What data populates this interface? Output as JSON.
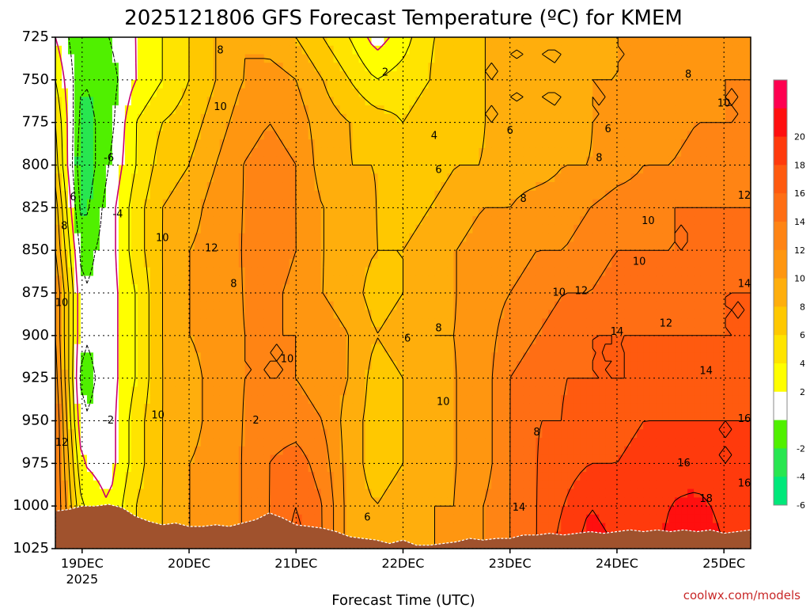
{
  "chart_data": {
    "type": "heatmap",
    "title": "2025121806 GFS Forecast Temperature (ºC) for KMEM",
    "xlabel": "Forecast Time (UTC)",
    "ylabel": "",
    "y_levels": [
      725,
      750,
      775,
      800,
      825,
      850,
      875,
      900,
      925,
      950,
      975,
      1000,
      1025
    ],
    "y_tick_labels": [
      "725",
      "750",
      "775",
      "800",
      "825",
      "850",
      "875",
      "900",
      "925",
      "950",
      "975",
      "1000",
      "1025"
    ],
    "x_range_hours": [
      -6,
      150
    ],
    "x_ticks": [
      {
        "hour": 0,
        "label": "19DEC",
        "sublabel": "2025"
      },
      {
        "hour": 24,
        "label": "20DEC",
        "sublabel": ""
      },
      {
        "hour": 48,
        "label": "21DEC",
        "sublabel": ""
      },
      {
        "hour": 72,
        "label": "22DEC",
        "sublabel": ""
      },
      {
        "hour": 96,
        "label": "23DEC",
        "sublabel": ""
      },
      {
        "hour": 120,
        "label": "24DEC",
        "sublabel": ""
      },
      {
        "hour": 144,
        "label": "25DEC",
        "sublabel": ""
      }
    ],
    "colorbar": {
      "labels": [
        "20",
        "18",
        "16",
        "14",
        "12",
        "10",
        "8",
        "6",
        "4",
        "2",
        "-2",
        "-4",
        "-6"
      ],
      "bins": [
        {
          "from": 20,
          "to": 22,
          "color": "#ff0050"
        },
        {
          "from": 18,
          "to": 20,
          "color": "#ff0f0f"
        },
        {
          "from": 16,
          "to": 18,
          "color": "#ff3a0c"
        },
        {
          "from": 14,
          "to": 16,
          "color": "#ff5a0f"
        },
        {
          "from": 12,
          "to": 14,
          "color": "#ff6e14"
        },
        {
          "from": 10,
          "to": 12,
          "color": "#ff8414"
        },
        {
          "from": 8,
          "to": 10,
          "color": "#ff9610"
        },
        {
          "from": 6,
          "to": 8,
          "color": "#ffae0c"
        },
        {
          "from": 4,
          "to": 6,
          "color": "#ffc800"
        },
        {
          "from": 2,
          "to": 4,
          "color": "#ffe400"
        },
        {
          "from": 0,
          "to": 2,
          "color": "#ffff00"
        },
        {
          "from": -2,
          "to": 0,
          "color": "#ffffff"
        },
        {
          "from": -4,
          "to": -2,
          "color": "#50f000"
        },
        {
          "from": -6,
          "to": -4,
          "color": "#28e650"
        },
        {
          "from": -8,
          "to": -6,
          "color": "#00e87a"
        }
      ]
    },
    "grid": true,
    "hours": [
      -6,
      0,
      6,
      12,
      18,
      24,
      30,
      36,
      42,
      48,
      54,
      60,
      66,
      72,
      78,
      84,
      90,
      96,
      102,
      108,
      114,
      120,
      126,
      132,
      138,
      144,
      150
    ],
    "temperature": [
      [
        0,
        -4,
        -2,
        0,
        2,
        4,
        6,
        8,
        7,
        6,
        4,
        2,
        -1,
        1,
        4,
        4,
        6,
        6,
        6,
        6,
        7,
        8,
        8,
        8,
        8,
        8,
        8
      ],
      [
        2,
        -4,
        -3,
        0,
        2,
        4,
        6,
        8,
        9,
        8,
        6,
        4,
        2,
        3,
        4,
        5,
        6,
        6,
        6,
        6,
        8,
        8,
        8,
        8,
        9,
        10,
        10
      ],
      [
        4,
        -5,
        -3,
        2,
        4,
        5,
        7,
        9,
        10,
        9,
        7,
        6,
        5,
        4,
        5,
        5,
        6,
        6,
        6,
        6,
        8,
        8,
        9,
        9,
        10,
        10,
        10
      ],
      [
        5,
        -6,
        -2,
        2,
        5,
        6,
        8,
        10,
        11,
        10,
        7,
        6,
        6,
        5,
        5,
        6,
        6,
        7,
        7,
        8,
        8,
        9,
        10,
        10,
        11,
        11,
        11
      ],
      [
        7,
        -5,
        -1,
        3,
        6,
        7,
        9,
        10,
        11,
        10,
        8,
        7,
        6,
        5,
        6,
        7,
        8,
        8,
        9,
        9,
        10,
        11,
        11,
        12,
        12,
        12,
        12
      ],
      [
        8,
        -3,
        -1,
        3,
        6,
        8,
        9,
        10,
        12,
        10,
        8,
        7,
        6,
        6,
        7,
        8,
        9,
        9,
        10,
        10,
        11,
        12,
        12,
        12,
        12,
        12,
        13
      ],
      [
        10,
        -2,
        -1,
        2,
        6,
        8,
        9,
        10,
        11,
        9,
        8,
        7,
        5,
        6,
        7,
        8,
        9,
        10,
        11,
        12,
        12,
        13,
        13,
        13,
        13,
        14,
        14
      ],
      [
        10,
        -2,
        -1,
        2,
        6,
        8,
        9,
        10,
        10,
        10,
        9,
        8,
        6,
        7,
        8,
        8,
        9,
        11,
        12,
        13,
        14,
        14,
        14,
        14,
        14,
        14,
        14
      ],
      [
        11,
        -3,
        -1,
        2,
        6,
        7,
        9,
        10,
        10,
        10,
        9,
        8,
        5,
        6,
        7,
        8,
        9,
        12,
        13,
        14,
        14,
        14,
        14,
        15,
        15,
        15,
        15
      ],
      [
        12,
        -2,
        -1,
        3,
        6,
        7,
        9,
        10,
        11,
        11,
        10,
        7,
        5,
        6,
        7,
        8,
        9,
        12,
        14,
        14,
        15,
        15,
        16,
        16,
        16,
        16,
        16
      ],
      [
        12,
        0,
        -1,
        3,
        6,
        8,
        9,
        10,
        12,
        13,
        11,
        7,
        5,
        6,
        7,
        8,
        9,
        12,
        14,
        15,
        16,
        16,
        17,
        17,
        16,
        16,
        16
      ],
      [
        12,
        2,
        0,
        4,
        6,
        8,
        9,
        10,
        12,
        14,
        12,
        7,
        6,
        7,
        8,
        8,
        10,
        12,
        14,
        16,
        18,
        17,
        16,
        18,
        19,
        17,
        17
      ],
      [
        12,
        2,
        0,
        4,
        6,
        8,
        9,
        10,
        12,
        15,
        12,
        7,
        6,
        7,
        8,
        8,
        10,
        12,
        14,
        17,
        19,
        18,
        16,
        19,
        21,
        18,
        18
      ]
    ],
    "contour_labels": [
      {
        "text": "2",
        "hour": 39,
        "level": 950
      },
      {
        "text": "-6",
        "hour": 6,
        "level": 796
      },
      {
        "text": "-4",
        "hour": 8,
        "level": 829
      },
      {
        "text": "-2",
        "hour": 6,
        "level": 950
      },
      {
        "text": "6",
        "hour": -2,
        "level": 819
      },
      {
        "text": "8",
        "hour": -4,
        "level": 836
      },
      {
        "text": "10",
        "hour": -7,
        "level": 881
      },
      {
        "text": "12",
        "hour": -6,
        "level": 963
      },
      {
        "text": "8",
        "hour": 31,
        "level": 733
      },
      {
        "text": "10",
        "hour": 31,
        "level": 766
      },
      {
        "text": "10",
        "hour": 18,
        "level": 843
      },
      {
        "text": "12",
        "hour": 29,
        "level": 849
      },
      {
        "text": "8",
        "hour": 34,
        "level": 870
      },
      {
        "text": "10",
        "hour": 17,
        "level": 947
      },
      {
        "text": "10",
        "hour": 46,
        "level": 914
      },
      {
        "text": "2",
        "hour": 68,
        "level": 746
      },
      {
        "text": "4",
        "hour": 79,
        "level": 783
      },
      {
        "text": "6",
        "hour": 80,
        "level": 803
      },
      {
        "text": "8",
        "hour": 99,
        "level": 820
      },
      {
        "text": "6",
        "hour": 73,
        "level": 902
      },
      {
        "text": "8",
        "hour": 80,
        "level": 896
      },
      {
        "text": "8",
        "hour": 102,
        "level": 957
      },
      {
        "text": "10",
        "hour": 81,
        "level": 939
      },
      {
        "text": "6",
        "hour": 96,
        "level": 780
      },
      {
        "text": "6",
        "hour": 118,
        "level": 779
      },
      {
        "text": "8",
        "hour": 116,
        "level": 796
      },
      {
        "text": "8",
        "hour": 136,
        "level": 747
      },
      {
        "text": "10",
        "hour": 144,
        "level": 764
      },
      {
        "text": "12",
        "hour": 150,
        "level": 818
      },
      {
        "text": "10",
        "hour": 127,
        "level": 833
      },
      {
        "text": "10",
        "hour": 125,
        "level": 857
      },
      {
        "text": "10",
        "hour": 107,
        "level": 875
      },
      {
        "text": "12",
        "hour": 112,
        "level": 874
      },
      {
        "text": "12",
        "hour": 131,
        "level": 893
      },
      {
        "text": "14",
        "hour": 120,
        "level": 898
      },
      {
        "text": "14",
        "hour": 140,
        "level": 921
      },
      {
        "text": "14",
        "hour": 153,
        "level": 870
      },
      {
        "text": "16",
        "hour": 149,
        "level": 949
      },
      {
        "text": "16",
        "hour": 135,
        "level": 975
      },
      {
        "text": "14",
        "hour": 98,
        "level": 1001
      },
      {
        "text": "18",
        "hour": 140,
        "level": 996
      },
      {
        "text": "16",
        "hour": 160,
        "level": 987
      },
      {
        "text": "6",
        "hour": 64,
        "level": 1007
      }
    ],
    "terrain_surface": [
      [
        -6,
        1003
      ],
      [
        -3,
        1002
      ],
      [
        0,
        1000
      ],
      [
        3,
        1000
      ],
      [
        6,
        999
      ],
      [
        9,
        1001
      ],
      [
        12,
        1006
      ],
      [
        15,
        1009
      ],
      [
        18,
        1011
      ],
      [
        21,
        1010
      ],
      [
        24,
        1012
      ],
      [
        27,
        1012
      ],
      [
        30,
        1011
      ],
      [
        33,
        1012
      ],
      [
        36,
        1010
      ],
      [
        39,
        1008
      ],
      [
        42,
        1004
      ],
      [
        45,
        1007
      ],
      [
        48,
        1011
      ],
      [
        51,
        1012
      ],
      [
        54,
        1013
      ],
      [
        57,
        1015
      ],
      [
        60,
        1018
      ],
      [
        63,
        1019
      ],
      [
        66,
        1020
      ],
      [
        69,
        1022
      ],
      [
        72,
        1020
      ],
      [
        75,
        1023
      ],
      [
        78,
        1023
      ],
      [
        81,
        1022
      ],
      [
        84,
        1021
      ],
      [
        87,
        1019
      ],
      [
        90,
        1020
      ],
      [
        93,
        1019
      ],
      [
        96,
        1019
      ],
      [
        99,
        1017
      ],
      [
        102,
        1017
      ],
      [
        105,
        1016
      ],
      [
        108,
        1017
      ],
      [
        111,
        1016
      ],
      [
        114,
        1015
      ],
      [
        117,
        1016
      ],
      [
        120,
        1015
      ],
      [
        123,
        1014
      ],
      [
        126,
        1015
      ],
      [
        129,
        1014
      ],
      [
        132,
        1015
      ],
      [
        135,
        1014
      ],
      [
        138,
        1015
      ],
      [
        141,
        1014
      ],
      [
        144,
        1016
      ],
      [
        147,
        1015
      ],
      [
        150,
        1014
      ]
    ]
  },
  "credit": "coolwx.com/models",
  "colors": {
    "terrain": "#a0522d",
    "contour": "#000000",
    "freezing_contour": "#c8006e",
    "grid": "#000000"
  }
}
